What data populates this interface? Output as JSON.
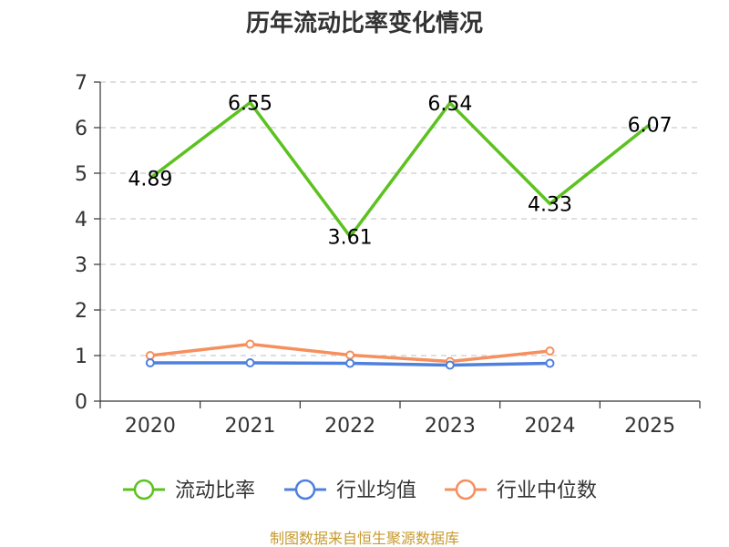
{
  "chart_data": {
    "type": "line",
    "title": "历年流动比率变化情况",
    "categories": [
      "2020",
      "2021",
      "2022",
      "2023",
      "2024",
      "2025"
    ],
    "ylim": [
      0,
      7
    ],
    "yticks": [
      "0",
      "1",
      "2",
      "3",
      "4",
      "5",
      "6",
      "7"
    ],
    "grid": true,
    "legend_position": "bottom",
    "series": [
      {
        "name": "流动比率",
        "color": "#5bc21f",
        "values": [
          4.89,
          6.55,
          3.61,
          6.54,
          4.33,
          6.07
        ],
        "labels": [
          "4.89",
          "6.55",
          "3.61",
          "6.54",
          "4.33",
          "6.07"
        ],
        "show_labels": true,
        "show_markers": false
      },
      {
        "name": "行业均值",
        "color": "#4f80de",
        "values": [
          0.84,
          0.84,
          0.83,
          0.79,
          0.83,
          null
        ],
        "show_labels": false,
        "show_markers": true
      },
      {
        "name": "行业中位数",
        "color": "#f5905e",
        "values": [
          1.0,
          1.25,
          1.01,
          0.87,
          1.1,
          null
        ],
        "show_labels": false,
        "show_markers": true
      }
    ]
  },
  "source": {
    "text": "制图数据来自恒生聚源数据库",
    "color": "#c79a2e"
  }
}
